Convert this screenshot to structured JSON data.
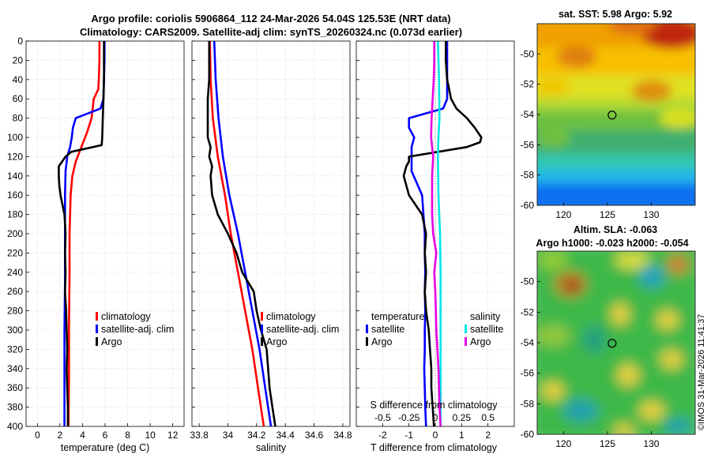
{
  "title": {
    "line1": "Argo profile: coriolis 5906864_112 24-Mar-2026 54.04S 125.53E (NRT data)",
    "line2": "Climatology: CARS2009. Satellite-adj clim: synTS_20260324.nc (0.073d earlier)"
  },
  "chart_data": [
    {
      "id": "temperature",
      "type": "line",
      "xlabel": "temperature (deg C)",
      "ylabel": "",
      "xlim": [
        -1,
        13
      ],
      "ylim": [
        400,
        0
      ],
      "xticks": [
        0,
        2,
        4,
        6,
        8,
        10,
        12
      ],
      "yticks": [
        0,
        20,
        40,
        60,
        80,
        100,
        120,
        140,
        160,
        180,
        200,
        220,
        240,
        260,
        280,
        300,
        320,
        340,
        360,
        380,
        400
      ],
      "legend": [
        "climatology",
        "satellite-adj. clim",
        "Argo"
      ],
      "legend_position": "bottom-right",
      "series": [
        {
          "name": "climatology",
          "color": "#ff0000",
          "depth": [
            0,
            20,
            40,
            50,
            60,
            80,
            95,
            110,
            125,
            140,
            160,
            180,
            200,
            240,
            300,
            350,
            400
          ],
          "values": [
            5.5,
            5.5,
            5.45,
            5.4,
            5.0,
            4.8,
            4.4,
            3.9,
            3.4,
            3.1,
            2.95,
            2.9,
            2.85,
            2.85,
            2.8,
            2.8,
            2.75
          ]
        },
        {
          "name": "satellite-adj. clim",
          "color": "#0000ff",
          "depth": [
            0,
            20,
            40,
            60,
            70,
            80,
            90,
            100,
            110,
            120,
            135,
            160,
            200,
            250,
            300,
            350,
            400
          ],
          "values": [
            5.95,
            5.95,
            5.9,
            5.85,
            5.6,
            3.4,
            3.15,
            3.05,
            2.9,
            2.65,
            2.5,
            2.45,
            2.45,
            2.45,
            2.4,
            2.4,
            2.4
          ]
        },
        {
          "name": "Argo",
          "color": "#000000",
          "depth": [
            0,
            20,
            40,
            60,
            80,
            100,
            108,
            115,
            120,
            125,
            130,
            140,
            150,
            160,
            180,
            200,
            220,
            240,
            260,
            280,
            300,
            320,
            340,
            360,
            380,
            400
          ],
          "values": [
            5.9,
            5.9,
            5.9,
            5.85,
            5.8,
            5.75,
            5.7,
            3.0,
            2.5,
            2.2,
            1.9,
            1.9,
            1.95,
            2.05,
            2.4,
            2.5,
            2.45,
            2.5,
            2.45,
            2.55,
            2.6,
            2.65,
            2.6,
            2.65,
            2.7,
            2.7
          ]
        }
      ]
    },
    {
      "id": "salinity",
      "type": "line",
      "xlabel": "salinity",
      "xlim": [
        33.75,
        34.85
      ],
      "ylim": [
        400,
        0
      ],
      "xticks": [
        33.8,
        34,
        34.2,
        34.4,
        34.6,
        34.8
      ],
      "xticklabels": [
        "33.8",
        "34",
        "34.2",
        "34.4",
        "34.6",
        "34.8"
      ],
      "legend": [
        "climatology",
        "satellite-adj. clim",
        "Argo"
      ],
      "legend_position": "bottom-right",
      "series": [
        {
          "name": "climatology",
          "color": "#ff0000",
          "depth": [
            0,
            40,
            80,
            120,
            160,
            200,
            240,
            280,
            320,
            360,
            400
          ],
          "values": [
            33.875,
            33.88,
            33.895,
            33.93,
            33.98,
            34.02,
            34.07,
            34.12,
            34.17,
            34.21,
            34.25
          ]
        },
        {
          "name": "satellite-adj. clim",
          "color": "#0000ff",
          "depth": [
            0,
            40,
            80,
            120,
            160,
            200,
            240,
            280,
            320,
            360,
            400
          ],
          "values": [
            33.905,
            33.915,
            33.935,
            33.965,
            34.01,
            34.07,
            34.12,
            34.17,
            34.22,
            34.26,
            34.3
          ]
        },
        {
          "name": "Argo",
          "color": "#000000",
          "depth": [
            0,
            20,
            40,
            60,
            80,
            100,
            110,
            120,
            130,
            140,
            160,
            180,
            200,
            220,
            240,
            260,
            280,
            300,
            320,
            340,
            360,
            380,
            400
          ],
          "values": [
            33.87,
            33.87,
            33.87,
            33.86,
            33.86,
            33.86,
            33.88,
            33.87,
            33.89,
            33.88,
            33.89,
            33.93,
            34.0,
            34.06,
            34.1,
            34.18,
            34.2,
            34.23,
            34.27,
            34.28,
            34.29,
            34.31,
            34.33
          ]
        }
      ]
    },
    {
      "id": "difference",
      "type": "line",
      "xlabel": "T difference from climatology",
      "top_axis_label": "S difference from climatology",
      "xlim": [
        -3,
        3
      ],
      "ylim": [
        400,
        0
      ],
      "xticks": [
        -2,
        -1,
        0,
        1,
        2
      ],
      "top_xlim": [
        -0.75,
        0.75
      ],
      "top_xticks": [
        -0.5,
        -0.25,
        0,
        0.25,
        0.5
      ],
      "top_xticklabels": [
        "-0.5",
        "-0.25",
        "0",
        "0.25",
        "0.5"
      ],
      "legend_groups": [
        {
          "title": "temperature",
          "entries": [
            "satellite",
            "Argo"
          ]
        },
        {
          "title": "salinity",
          "entries": [
            "satellite",
            "Argo"
          ]
        }
      ],
      "series": [
        {
          "name": "temperature satellite",
          "color": "#0000ff",
          "depth": [
            0,
            20,
            40,
            60,
            70,
            80,
            90,
            100,
            110,
            120,
            135,
            160,
            180,
            200,
            220,
            240,
            260,
            280,
            300,
            320,
            340,
            360,
            380,
            400
          ],
          "values": [
            0.45,
            0.45,
            0.45,
            0.45,
            0.3,
            -1.0,
            -1.0,
            -0.8,
            -0.9,
            -0.9,
            -0.9,
            -0.5,
            -0.45,
            -0.4,
            -0.4,
            -0.38,
            -0.4,
            -0.38,
            -0.4,
            -0.4,
            -0.42,
            -0.4,
            -0.38,
            -0.35
          ]
        },
        {
          "name": "temperature Argo",
          "color": "#000000",
          "depth": [
            0,
            20,
            40,
            60,
            70,
            80,
            90,
            100,
            105,
            110,
            115,
            120,
            125,
            130,
            140,
            160,
            180,
            200,
            220,
            240,
            260,
            280,
            300,
            320,
            340,
            360,
            380,
            400
          ],
          "values": [
            0.4,
            0.4,
            0.45,
            0.6,
            0.8,
            1.2,
            1.5,
            1.75,
            1.7,
            1.2,
            0.1,
            -1.0,
            -1.0,
            -1.1,
            -1.2,
            -1.0,
            -0.5,
            -0.35,
            -0.4,
            -0.35,
            -0.4,
            -0.35,
            -0.25,
            -0.2,
            -0.15,
            -0.15,
            -0.1,
            -0.05
          ]
        },
        {
          "name": "salinity satellite",
          "color": "#00e5e5",
          "depth": [
            0,
            40,
            80,
            100,
            120,
            160,
            200,
            240,
            280,
            320,
            360,
            400
          ],
          "values": [
            0.025,
            0.035,
            0.04,
            0.03,
            0.025,
            0.03,
            0.045,
            0.05,
            0.05,
            0.05,
            0.05,
            0.05
          ]
        },
        {
          "name": "salinity Argo",
          "color": "#e600e6",
          "depth": [
            0,
            20,
            40,
            60,
            80,
            100,
            110,
            120,
            140,
            160,
            180,
            200,
            220,
            240,
            260,
            280,
            300,
            320,
            340,
            360,
            380,
            400
          ],
          "values": [
            -0.01,
            -0.01,
            -0.015,
            -0.025,
            -0.035,
            -0.04,
            -0.03,
            -0.02,
            -0.03,
            -0.03,
            -0.03,
            -0.02,
            0.01,
            -0.01,
            0.0,
            0.005,
            0.01,
            0.02,
            0.03,
            0.035,
            0.04,
            0.05
          ]
        }
      ]
    },
    {
      "id": "sst_map",
      "type": "heatmap",
      "title": "sat. SST: 5.98 Argo: 5.92",
      "xlim": [
        117,
        135
      ],
      "ylim": [
        -60,
        -48
      ],
      "xticks": [
        120,
        125,
        130
      ],
      "yticks": [
        -50,
        -52,
        -54,
        -56,
        -58,
        -60
      ],
      "marker": {
        "lon": 125.53,
        "lat": -54.04
      }
    },
    {
      "id": "sla_map",
      "type": "heatmap",
      "title": "Altim. SLA: -0.063",
      "subtitle": "Argo h1000: -0.023 h2000: -0.054",
      "xlim": [
        117,
        135
      ],
      "ylim": [
        -60,
        -48
      ],
      "xticks": [
        120,
        125,
        130
      ],
      "yticks": [
        -50,
        -52,
        -54,
        -56,
        -58,
        -60
      ],
      "marker": {
        "lon": 125.53,
        "lat": -54.04
      }
    }
  ],
  "stamp": "©IMOS 31-Mar-2026 11:41:37"
}
